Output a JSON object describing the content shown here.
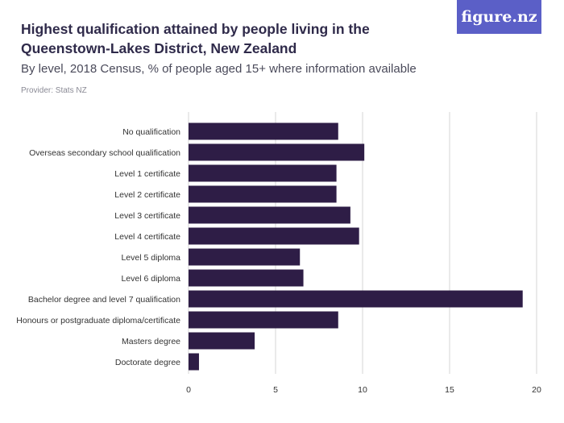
{
  "header": {
    "title": "Highest qualification attained by people living in the Queenstown-Lakes District, New Zealand",
    "subtitle": "By level, 2018 Census, % of people aged 15+ where information available",
    "provider": "Provider: Stats NZ",
    "logo_text": "figure.nz"
  },
  "colors": {
    "bar": "#2e1d46",
    "grid": "#d4d4d4",
    "brand": "#5b5fc7"
  },
  "chart_data": {
    "type": "bar",
    "orientation": "horizontal",
    "categories": [
      "No qualification",
      "Overseas secondary school qualification",
      "Level 1 certificate",
      "Level 2 certificate",
      "Level 3 certificate",
      "Level 4 certificate",
      "Level 5 diploma",
      "Level 6 diploma",
      "Bachelor degree and level 7 qualification",
      "Honours or postgraduate diploma/certificate",
      "Masters degree",
      "Doctorate degree"
    ],
    "values": [
      8.6,
      10.1,
      8.5,
      8.5,
      9.3,
      9.8,
      6.4,
      6.6,
      19.2,
      8.6,
      3.8,
      0.6
    ],
    "xlim": [
      0,
      20
    ],
    "xticks": [
      0,
      5,
      10,
      15,
      20
    ],
    "grid": true,
    "legend": false
  }
}
